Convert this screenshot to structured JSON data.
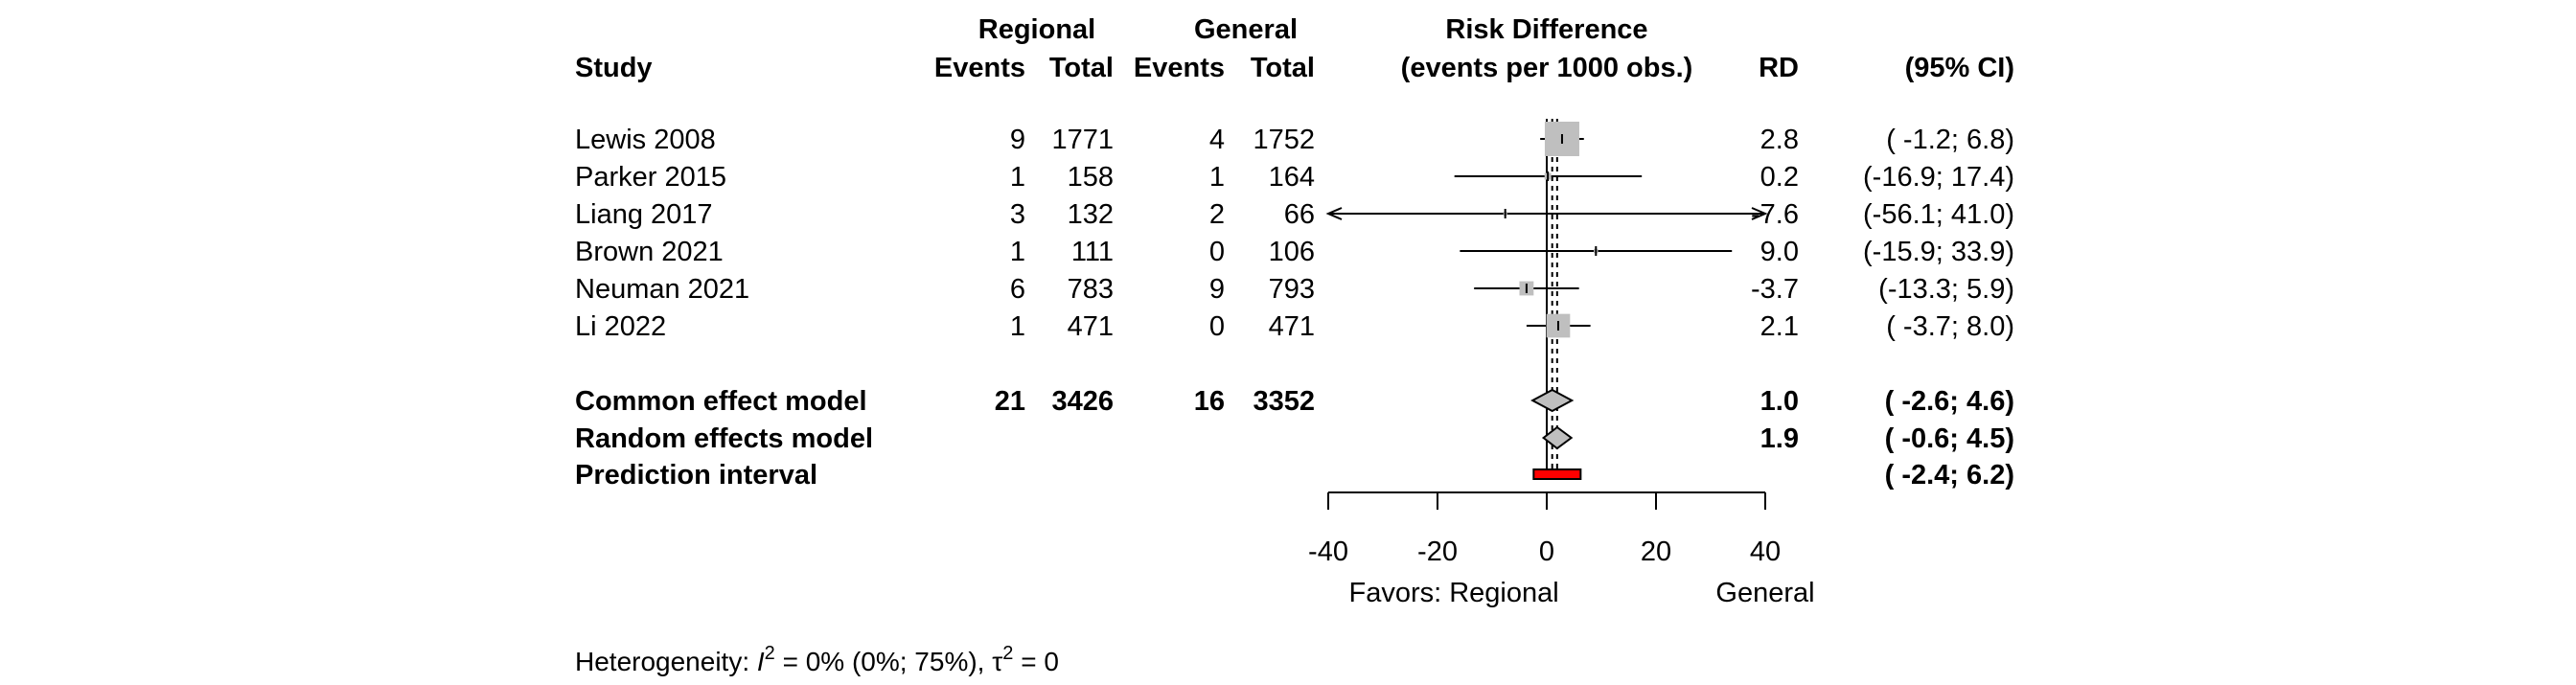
{
  "chart_data": {
    "type": "forest",
    "header": {
      "study": "Study",
      "group1": "Regional",
      "group2": "General",
      "events": "Events",
      "total": "Total",
      "measure_line1": "Risk Difference",
      "measure_line2": "(events per 1000 obs.)",
      "rd": "RD",
      "ci": "(95% CI)"
    },
    "studies": [
      {
        "name": "Lewis 2008",
        "e1": "9",
        "n1": "1771",
        "e2": "4",
        "n2": "1752",
        "rd": 2.8,
        "lo": -1.2,
        "hi": 6.8,
        "rd_text": "2.8",
        "ci_text": "( -1.2;  6.8)",
        "weight": 0.53
      },
      {
        "name": "Parker 2015",
        "e1": "1",
        "n1": "158",
        "e2": "1",
        "n2": "164",
        "rd": 0.2,
        "lo": -16.9,
        "hi": 17.4,
        "rd_text": "0.2",
        "ci_text": "(-16.9; 17.4)",
        "weight": 0.02
      },
      {
        "name": "Liang 2017",
        "e1": "3",
        "n1": "132",
        "e2": "2",
        "n2": "66",
        "rd": -7.6,
        "lo": -56.1,
        "hi": 41.0,
        "rd_text": "-7.6",
        "ci_text": "(-56.1; 41.0)",
        "weight": 0.003
      },
      {
        "name": "Brown 2021",
        "e1": "1",
        "n1": "111",
        "e2": "0",
        "n2": "106",
        "rd": 9.0,
        "lo": -15.9,
        "hi": 33.9,
        "rd_text": "9.0",
        "ci_text": "(-15.9; 33.9)",
        "weight": 0.008
      },
      {
        "name": "Neuman 2021",
        "e1": "6",
        "n1": "783",
        "e2": "9",
        "n2": "793",
        "rd": -3.7,
        "lo": -13.3,
        "hi": 5.9,
        "rd_text": "-3.7",
        "ci_text": "(-13.3;  5.9)",
        "weight": 0.09
      },
      {
        "name": "Li 2022",
        "e1": "1",
        "n1": "471",
        "e2": "0",
        "n2": "471",
        "rd": 2.1,
        "lo": -3.7,
        "hi": 8.0,
        "rd_text": "2.1",
        "ci_text": "( -3.7;  8.0)",
        "weight": 0.25
      }
    ],
    "common": {
      "label": "Common effect model",
      "e1": "21",
      "n1": "3426",
      "e2": "16",
      "n2": "3352",
      "rd": 1.0,
      "lo": -2.6,
      "hi": 4.6,
      "rd_text": "1.0",
      "ci_text": "( -2.6;  4.6)"
    },
    "random": {
      "label": "Random effects model",
      "rd": 1.9,
      "lo": -0.6,
      "hi": 4.5,
      "rd_text": "1.9",
      "ci_text": "( -0.6;  4.5)"
    },
    "prediction": {
      "label": "Prediction interval",
      "lo": -2.4,
      "hi": 6.2,
      "ci_text": "( -2.4;  6.2)"
    },
    "x_axis": {
      "range": [
        -40,
        40
      ],
      "ticks": [
        -40,
        -20,
        0,
        20,
        40
      ],
      "tick_labels": [
        "-40",
        "-20",
        "0",
        "20",
        "40"
      ]
    },
    "favors_left": "Favors: Regional",
    "favors_right": "General",
    "heterogeneity": {
      "prefix": "Heterogeneity: ",
      "i2_symbol": "I",
      "i2_sup": "2",
      "i2_text": " = 0% (0%; 75%), ",
      "tau_symbol": "τ",
      "tau_sup": "2",
      "tau_text": " = 0"
    },
    "colors": {
      "square": "#bfbfbf",
      "diamond": "#bfbfbf",
      "prediction": "#ff0000",
      "lines": "#000000"
    }
  }
}
